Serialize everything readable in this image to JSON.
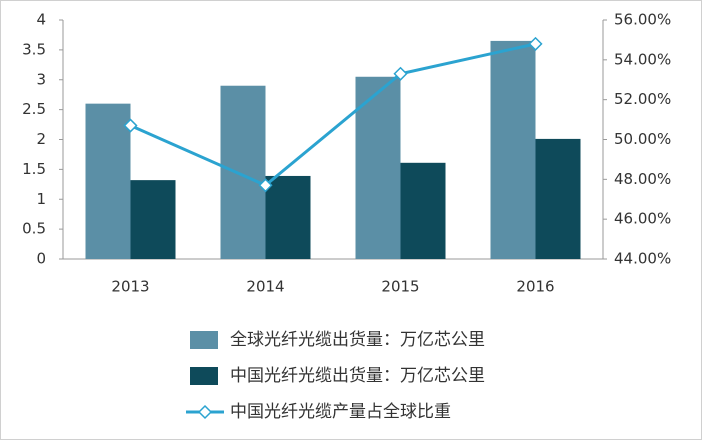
{
  "chart_data": {
    "type": "bar",
    "categories": [
      "2013",
      "2014",
      "2015",
      "2016"
    ],
    "series": [
      {
        "name": "全球光纤光缆出货量：万亿芯公里",
        "type": "bar",
        "color": "#5b8fa6",
        "values": [
          2.6,
          2.9,
          3.05,
          3.65
        ]
      },
      {
        "name": "中国光纤光缆出货量：万亿芯公里",
        "type": "bar",
        "color": "#0e4a5a",
        "values": [
          1.32,
          1.39,
          1.61,
          2.01
        ]
      },
      {
        "name": "中国光纤光缆产量占全球比重",
        "type": "line",
        "axis": "y2",
        "color": "#2ba3d0",
        "values": [
          50.7,
          47.7,
          53.3,
          54.8
        ]
      }
    ],
    "ylim": [
      0,
      4
    ],
    "yticks": [
      0,
      0.5,
      1,
      1.5,
      2,
      2.5,
      3,
      3.5,
      4
    ],
    "y2lim": [
      44,
      56
    ],
    "y2ticks": [
      {
        "value": 44,
        "label": "44.00%"
      },
      {
        "value": 46,
        "label": "46.00%"
      },
      {
        "value": 48,
        "label": "48.00%"
      },
      {
        "value": 50,
        "label": "50.00%"
      },
      {
        "value": 52,
        "label": "52.00%"
      },
      {
        "value": 54,
        "label": "54.00%"
      },
      {
        "value": 56,
        "label": "56.00%"
      }
    ],
    "legend": "bottom"
  }
}
